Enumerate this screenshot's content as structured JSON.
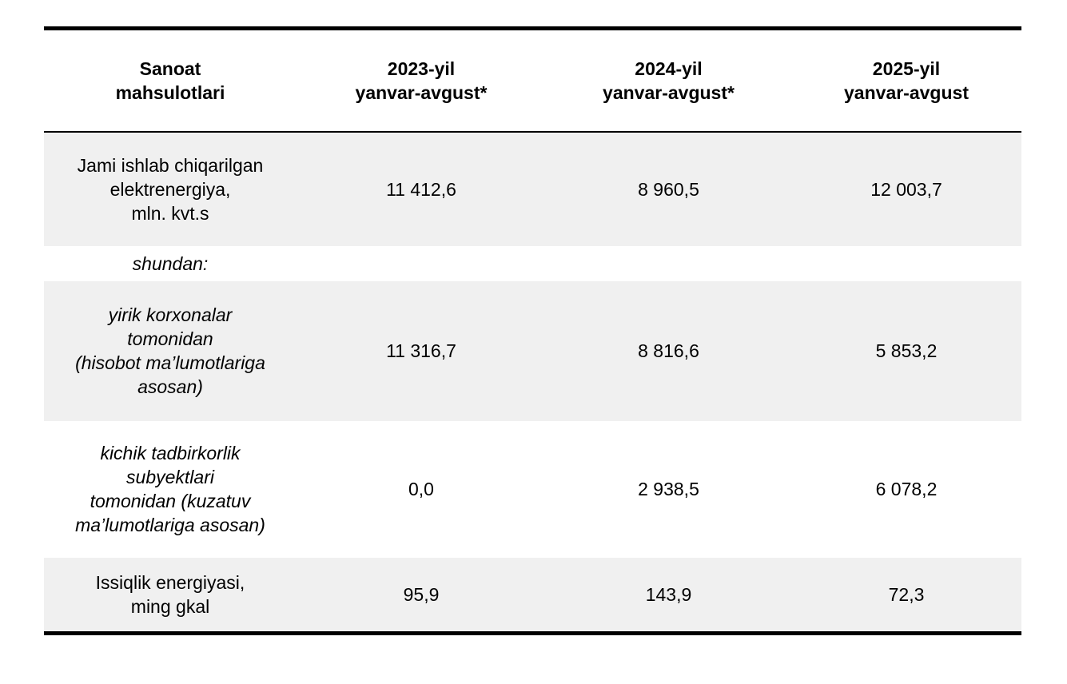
{
  "page": {
    "background": "#ffffff"
  },
  "table": {
    "shaded_row_color": "#f0f0f0",
    "border_color": "#000000",
    "columns": [
      "Sanoat\nmahsulotlari",
      "2023-yil\nyanvar-avgust*",
      "2024-yil\nyanvar-avgust*",
      "2025-yil\nyanvar-avgust"
    ],
    "rows": [
      {
        "label": "Jami ishlab chiqarilgan\nelektrenergiya,\nmln. kvt.s",
        "values": [
          "11 412,6",
          "8 960,5",
          "12 003,7"
        ]
      },
      {
        "label": "shundan:",
        "values": [
          "",
          "",
          ""
        ]
      },
      {
        "label": "yirik korxonalar\ntomonidan\n(hisobot ma’lumotlariga\nasosan)",
        "values": [
          "11 316,7",
          "8 816,6",
          "5 853,2"
        ]
      },
      {
        "label": "kichik tadbirkorlik\nsubyektlari\ntomonidan (kuzatuv\nma’lumotlariga asosan)",
        "values": [
          "0,0",
          "2 938,5",
          "6 078,2"
        ]
      },
      {
        "label": "Issiqlik energiyasi,\nming gkal",
        "values": [
          "95,9",
          "143,9",
          "72,3"
        ]
      }
    ]
  },
  "chart_data": {
    "type": "table",
    "title": "Sanoat mahsulotlari",
    "categories": [
      "2023-yil yanvar-avgust*",
      "2024-yil yanvar-avgust*",
      "2025-yil yanvar-avgust"
    ],
    "series": [
      {
        "name": "Jami ishlab chiqarilgan elektrenergiya, mln. kvt.s",
        "values": [
          11412.6,
          8960.5,
          12003.7
        ]
      },
      {
        "name": "shundan: yirik korxonalar tomonidan (hisobot ma’lumotlariga asosan)",
        "values": [
          11316.7,
          8816.6,
          5853.2
        ]
      },
      {
        "name": "shundan: kichik tadbirkorlik subyektlari tomonidan (kuzatuv ma’lumotlariga asosan)",
        "values": [
          0.0,
          2938.5,
          6078.2
        ]
      },
      {
        "name": "Issiqlik energiyasi, ming gkal",
        "values": [
          95.9,
          143.9,
          72.3
        ]
      }
    ]
  }
}
